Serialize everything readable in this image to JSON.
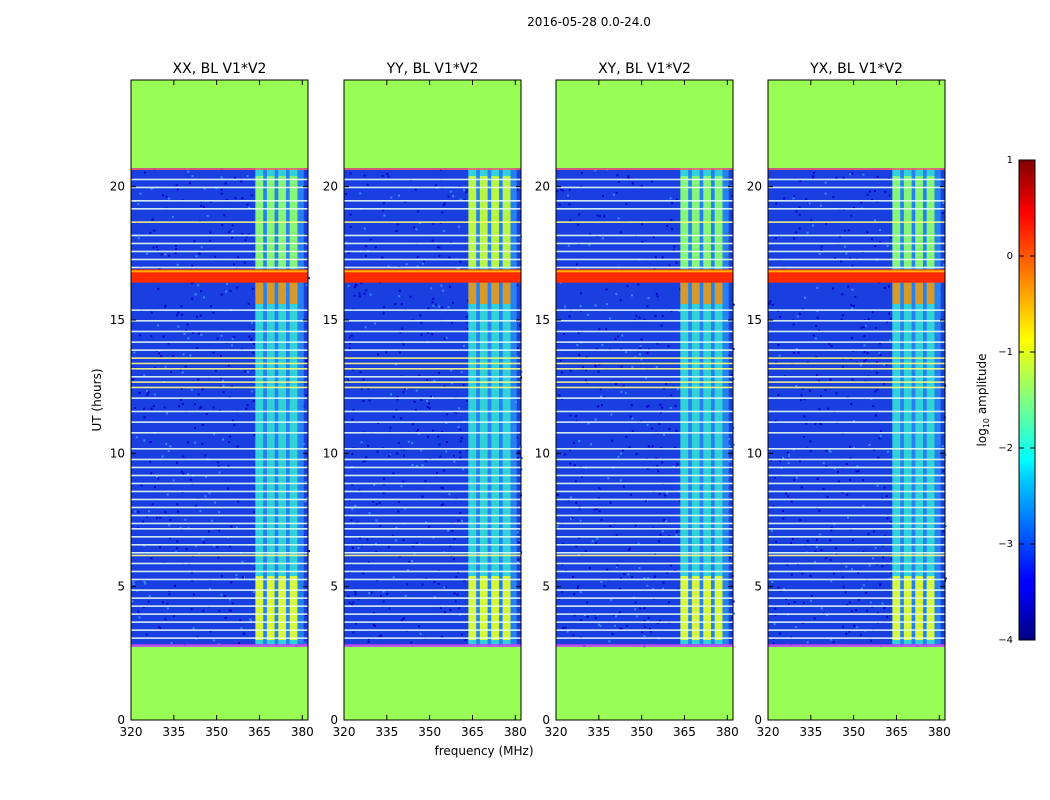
{
  "chart_data": {
    "type": "heatmap",
    "suptitle": "2016-05-28 0.0-24.0",
    "xlabel": "frequency (MHz)",
    "ylabel": "UT (hours)",
    "xlim": [
      320,
      382
    ],
    "ylim": [
      0,
      24
    ],
    "xticks": [
      320,
      335,
      350,
      365,
      380
    ],
    "yticks": [
      0,
      5,
      10,
      15,
      20
    ],
    "no_data_ranges_hours": [
      [
        0,
        2.8
      ],
      [
        20.7,
        24
      ]
    ],
    "rfi_band_mhz": [
      363.5,
      380.5
    ],
    "bright_band_hours": [
      16.4,
      16.9
    ],
    "panels": [
      {
        "title": "XX, BL V1*V2"
      },
      {
        "title": "YY, BL V1*V2"
      },
      {
        "title": "XY, BL V1*V2"
      },
      {
        "title": "YX, BL V1*V2"
      }
    ],
    "colorbar": {
      "label": "log",
      "label_sub": "10",
      "label_rest": " amplitude",
      "min": -4,
      "max": 1,
      "ticks": [
        "1",
        "0",
        "−1",
        "−2",
        "−3",
        "−4"
      ],
      "colormap": "jet",
      "masked_color": "#99ff55"
    }
  }
}
